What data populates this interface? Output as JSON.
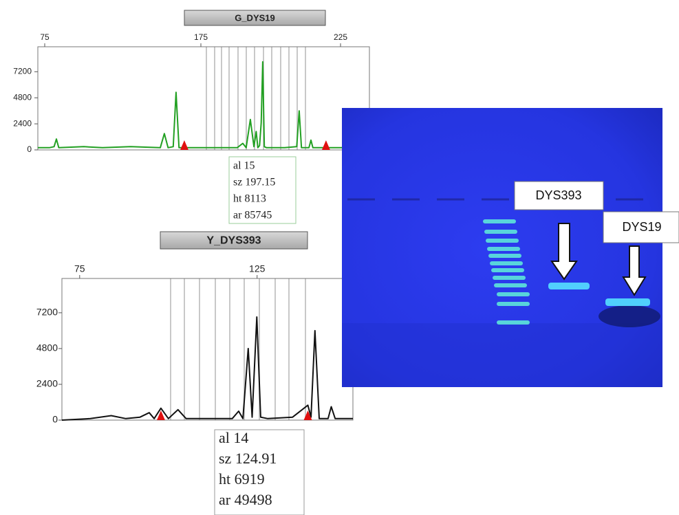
{
  "chart_data": [
    {
      "type": "line",
      "title": "G_DYS19",
      "x": [
        71,
        78,
        81,
        82.5,
        84,
        100,
        112,
        130,
        149,
        151.6,
        154,
        157.3,
        159.1,
        161,
        170,
        180,
        188,
        190,
        191.2,
        192.7,
        194,
        194.8,
        195.4,
        196,
        196.6,
        197.15,
        197.7,
        198.5,
        205,
        209.3,
        210.2,
        211,
        213.7,
        214.4,
        215.1,
        225,
        235
      ],
      "series": [
        {
          "color": "#22a022",
          "values": [
            200,
            200,
            300,
            1000,
            200,
            300,
            200,
            300,
            200,
            1500,
            200,
            300,
            5300,
            200,
            200,
            200,
            200,
            600,
            200,
            2800,
            300,
            1700,
            200,
            400,
            2500,
            8113,
            300,
            200,
            200,
            300,
            3600,
            200,
            200,
            900,
            200,
            200,
            200
          ]
        }
      ],
      "markers": [
        164.4,
        219.8
      ],
      "marker_color": "#e01010",
      "xlim": [
        71,
        235
      ],
      "xticks": [
        75,
        175,
        225
      ],
      "ylim": [
        0,
        9500
      ],
      "yticks": [
        0,
        2400,
        4800,
        7200
      ],
      "annotation": [
        "al 15",
        "sz 197.15",
        "ht 8113",
        "ar 85745"
      ]
    },
    {
      "type": "line",
      "title": "Y_DYS393",
      "x": [
        70,
        78,
        83.9,
        88,
        92,
        94.6,
        96,
        97.9,
        100,
        102.7,
        105,
        110,
        118,
        119.8,
        121,
        122.5,
        123.6,
        124.91,
        126,
        128,
        135,
        139.3,
        140.2,
        141.3,
        142.5,
        145,
        145.9,
        147,
        152
      ],
      "series": [
        {
          "color": "#111111",
          "values": [
            0,
            100,
            300,
            100,
            200,
            500,
            100,
            800,
            100,
            700,
            100,
            100,
            100,
            600,
            100,
            4800,
            200,
            6919,
            200,
            100,
            200,
            1000,
            200,
            6000,
            100,
            100,
            900,
            100,
            100
          ]
        }
      ],
      "markers": [
        97.9,
        139.3
      ],
      "marker_color": "#e01010",
      "xlim": [
        70,
        152
      ],
      "xticks": [
        75,
        125
      ],
      "ylim": [
        0,
        9500
      ],
      "yticks": [
        0,
        2400,
        4800,
        7200
      ],
      "annotation": [
        "al 14",
        "sz 124.91",
        "ht 6919",
        "ar 49498"
      ]
    }
  ],
  "gel": {
    "labels": [
      "DYS393",
      "DYS19"
    ]
  }
}
